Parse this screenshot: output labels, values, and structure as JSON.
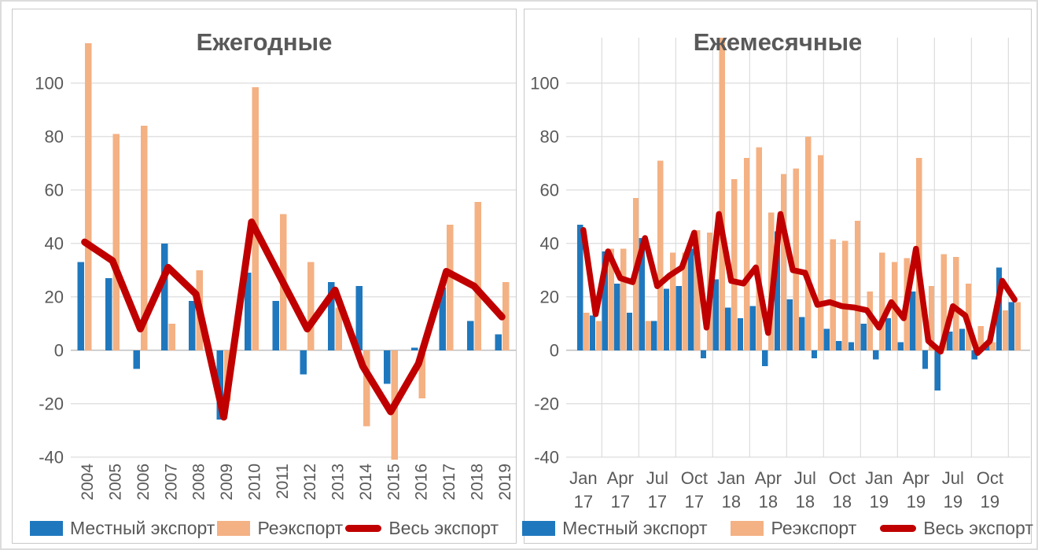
{
  "colors": {
    "local_export_blue": "#1F78BE",
    "reexport_orange": "#F4B183",
    "total_export_red": "#C00000",
    "gridline": "#D9D9D9",
    "zero_axis": "#BFBFBF",
    "axis_text": "#595959",
    "title_text": "#595959",
    "panel_border": "#C8C8C8",
    "background": "#FFFFFF"
  },
  "chart_data": [
    {
      "type": "bar",
      "subtype": "bar-line-combo",
      "title": "Ежегодные",
      "categories": [
        "2004",
        "2005",
        "2006",
        "2007",
        "2008",
        "2009",
        "2010",
        "2011",
        "2012",
        "2013",
        "2014",
        "2015",
        "2016",
        "2017",
        "2018",
        "2019"
      ],
      "series": [
        {
          "name": "Местный экспорт",
          "type": "bar",
          "color": "#1F78BE",
          "values": [
            33,
            27,
            -7,
            40,
            18.5,
            -26,
            29,
            18.5,
            -9,
            25.5,
            24,
            -12.5,
            1,
            23.5,
            11,
            6
          ]
        },
        {
          "name": "Реэкспорт",
          "type": "bar",
          "color": "#F4B183",
          "values": [
            115,
            81,
            84,
            10,
            30,
            -19,
            98.5,
            51,
            33,
            16,
            -28.5,
            -41,
            -18,
            47,
            55.5,
            25.5
          ]
        },
        {
          "name": "Весь экспорт",
          "type": "line",
          "color": "#C00000",
          "values": [
            40.5,
            33.5,
            8,
            31,
            21,
            -25,
            48,
            28,
            8,
            22.5,
            -6,
            -23,
            -5,
            29.5,
            24,
            12.5
          ]
        }
      ],
      "ylim": [
        -48,
        122
      ],
      "yticks": [
        -40,
        -20,
        0,
        20,
        40,
        60,
        80,
        100
      ],
      "grid": "horizontal",
      "xtick_mode": "all-rotated",
      "legend_position": "bottom"
    },
    {
      "type": "bar",
      "subtype": "bar-line-combo",
      "title": "Ежемесячные",
      "categories": [
        "Jan 17",
        "Feb 17",
        "Mar 17",
        "Apr 17",
        "May 17",
        "Jun 17",
        "Jul 17",
        "Aug 17",
        "Sep 17",
        "Oct 17",
        "Nov 17",
        "Dec 17",
        "Jan 18",
        "Feb 18",
        "Mar 18",
        "Apr 18",
        "May 18",
        "Jun 18",
        "Jul 18",
        "Aug 18",
        "Sep 18",
        "Oct 18",
        "Nov 18",
        "Dec 18",
        "Jan 19",
        "Feb 19",
        "Mar 19",
        "Apr 19",
        "May 19",
        "Jun 19",
        "Jul 19",
        "Aug 19",
        "Sep 19",
        "Oct 19",
        "Nov 19",
        "Dec 19"
      ],
      "series": [
        {
          "name": "Местный экспорт",
          "type": "bar",
          "color": "#1F78BE",
          "values": [
            47,
            13,
            37,
            25,
            14,
            42,
            11,
            23,
            24,
            38,
            -3,
            26.5,
            16,
            12,
            16.5,
            -6,
            44.5,
            19,
            12.5,
            -3,
            8,
            3.5,
            3,
            10,
            -3.5,
            12,
            3,
            22,
            -7,
            -15,
            7,
            8,
            -3.5,
            3,
            31,
            18
          ]
        },
        {
          "name": "Реэкспорт",
          "type": "bar",
          "color": "#F4B183",
          "values": [
            14,
            11,
            38,
            38,
            57,
            11,
            71,
            36.5,
            36.5,
            45,
            44,
            117,
            64,
            72,
            76,
            51.5,
            66,
            68,
            80,
            73,
            41.5,
            41,
            48.5,
            22,
            36.5,
            33,
            34.5,
            72,
            24,
            36,
            35,
            25,
            9,
            3,
            15,
            18
          ]
        },
        {
          "name": "Весь экспорт",
          "type": "line",
          "color": "#C00000",
          "values": [
            45,
            13.5,
            37,
            27,
            25.5,
            42,
            24,
            28,
            31,
            44,
            8.5,
            51,
            26,
            25,
            31,
            6.5,
            51,
            30,
            29,
            17,
            18,
            16.5,
            16,
            15,
            8.5,
            18,
            12,
            38,
            3.5,
            -0.5,
            16.5,
            13,
            -1,
            3.5,
            26,
            19
          ]
        }
      ],
      "ylim": [
        -48,
        122
      ],
      "yticks": [
        -40,
        -20,
        0,
        20,
        40,
        60,
        80,
        100
      ],
      "grid": "horizontal-and-vertical",
      "xticks": [
        {
          "index": 0,
          "line1": "Jan",
          "line2": "17"
        },
        {
          "index": 3,
          "line1": "Apr",
          "line2": "17"
        },
        {
          "index": 6,
          "line1": "Jul",
          "line2": "17"
        },
        {
          "index": 9,
          "line1": "Oct",
          "line2": "17"
        },
        {
          "index": 12,
          "line1": "Jan",
          "line2": "18"
        },
        {
          "index": 15,
          "line1": "Apr",
          "line2": "18"
        },
        {
          "index": 18,
          "line1": "Jul",
          "line2": "18"
        },
        {
          "index": 21,
          "line1": "Oct",
          "line2": "18"
        },
        {
          "index": 24,
          "line1": "Jan",
          "line2": "19"
        },
        {
          "index": 27,
          "line1": "Apr",
          "line2": "19"
        },
        {
          "index": 30,
          "line1": "Jul",
          "line2": "19"
        },
        {
          "index": 33,
          "line1": "Oct",
          "line2": "19"
        }
      ],
      "legend_position": "bottom"
    }
  ]
}
